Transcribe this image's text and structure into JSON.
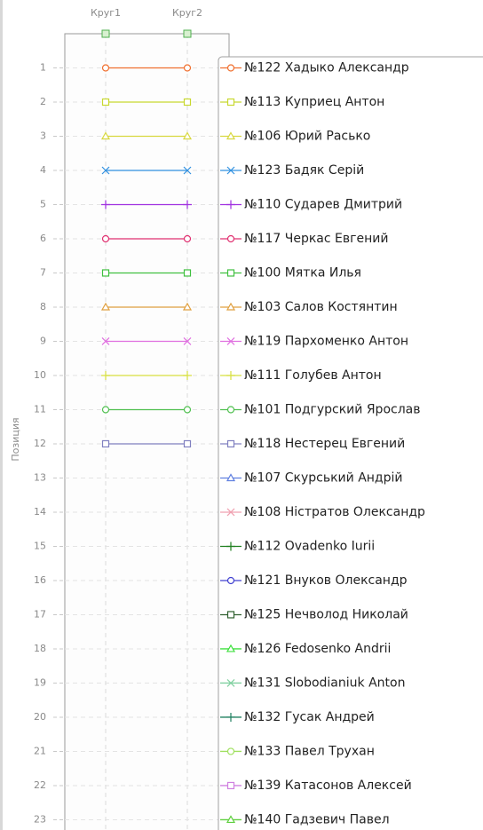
{
  "chart_data": {
    "type": "line",
    "y_label": "Позиция",
    "categories": [
      "Круг1",
      "Круг2"
    ],
    "ylim": [
      0,
      23.3
    ],
    "y_inverted": true,
    "grid": true,
    "yticks": [
      1,
      2,
      3,
      4,
      5,
      6,
      7,
      8,
      9,
      10,
      11,
      12,
      13,
      14,
      15,
      16,
      17,
      18,
      19,
      20,
      21,
      22,
      23
    ],
    "series": [
      {
        "name": "№122 Хадыко Александр",
        "color": "#f07030",
        "marker": "circle",
        "values": [
          1,
          1
        ]
      },
      {
        "name": "№113 Куприец Антон",
        "color": "#c8d830",
        "marker": "square",
        "values": [
          2,
          2
        ]
      },
      {
        "name": "№106 Юрий Расько",
        "color": "#d8d840",
        "marker": "triangle",
        "values": [
          3,
          3
        ]
      },
      {
        "name": "№123 Бадяк Серій",
        "color": "#3090e0",
        "marker": "x",
        "values": [
          4,
          4
        ]
      },
      {
        "name": "№110 Сударев Дмитрий",
        "color": "#a030e0",
        "marker": "plus",
        "values": [
          5,
          5
        ]
      },
      {
        "name": "№117 Черкас Евгений",
        "color": "#e03070",
        "marker": "circle",
        "values": [
          6,
          6
        ]
      },
      {
        "name": "№100 Мятка Илья",
        "color": "#40c040",
        "marker": "square",
        "values": [
          7,
          7
        ]
      },
      {
        "name": "№103 Салов Костянтин",
        "color": "#e0a040",
        "marker": "triangle",
        "values": [
          8,
          8
        ]
      },
      {
        "name": "№119 Пархоменко Антон",
        "color": "#e070e0",
        "marker": "x",
        "values": [
          9,
          9
        ]
      },
      {
        "name": "№111 Голубев Антон",
        "color": "#d8e040",
        "marker": "plus",
        "values": [
          10,
          10
        ]
      },
      {
        "name": "№101 Подгурский Ярослав",
        "color": "#50c050",
        "marker": "circle",
        "values": [
          11,
          11
        ]
      },
      {
        "name": "№118 Нестерец Евгений",
        "color": "#8080c0",
        "marker": "square",
        "values": [
          12,
          12
        ]
      },
      {
        "name": "№107 Скурський Андрій",
        "color": "#6080e0",
        "marker": "triangle",
        "values": [
          null,
          null
        ]
      },
      {
        "name": "№108 Ністратов Олександр",
        "color": "#f0a0b0",
        "marker": "x",
        "values": [
          null,
          null
        ]
      },
      {
        "name": "№112 Ovadenko Iurii",
        "color": "#208020",
        "marker": "plus",
        "values": [
          null,
          null
        ]
      },
      {
        "name": "№121 Внуков Олександр",
        "color": "#4040d0",
        "marker": "circle",
        "values": [
          null,
          null
        ]
      },
      {
        "name": "№125 Нечволод Николай",
        "color": "#306030",
        "marker": "square",
        "values": [
          null,
          null
        ]
      },
      {
        "name": "№126 Fedosenko Andrii",
        "color": "#40e040",
        "marker": "triangle",
        "values": [
          null,
          null
        ]
      },
      {
        "name": "№131 Slobodianiuk Anton",
        "color": "#80d0a0",
        "marker": "x",
        "values": [
          null,
          null
        ]
      },
      {
        "name": "№132 Гусак Андрей",
        "color": "#208060",
        "marker": "plus",
        "values": [
          null,
          null
        ]
      },
      {
        "name": "№133 Павел Трухан",
        "color": "#a0e060",
        "marker": "circle",
        "values": [
          null,
          null
        ]
      },
      {
        "name": "№139 Катасонов Алексей",
        "color": "#d080e0",
        "marker": "square",
        "values": [
          null,
          null
        ]
      },
      {
        "name": "№140 Гадзевич Павел",
        "color": "#60d040",
        "marker": "triangle",
        "values": [
          null,
          null
        ]
      }
    ]
  }
}
